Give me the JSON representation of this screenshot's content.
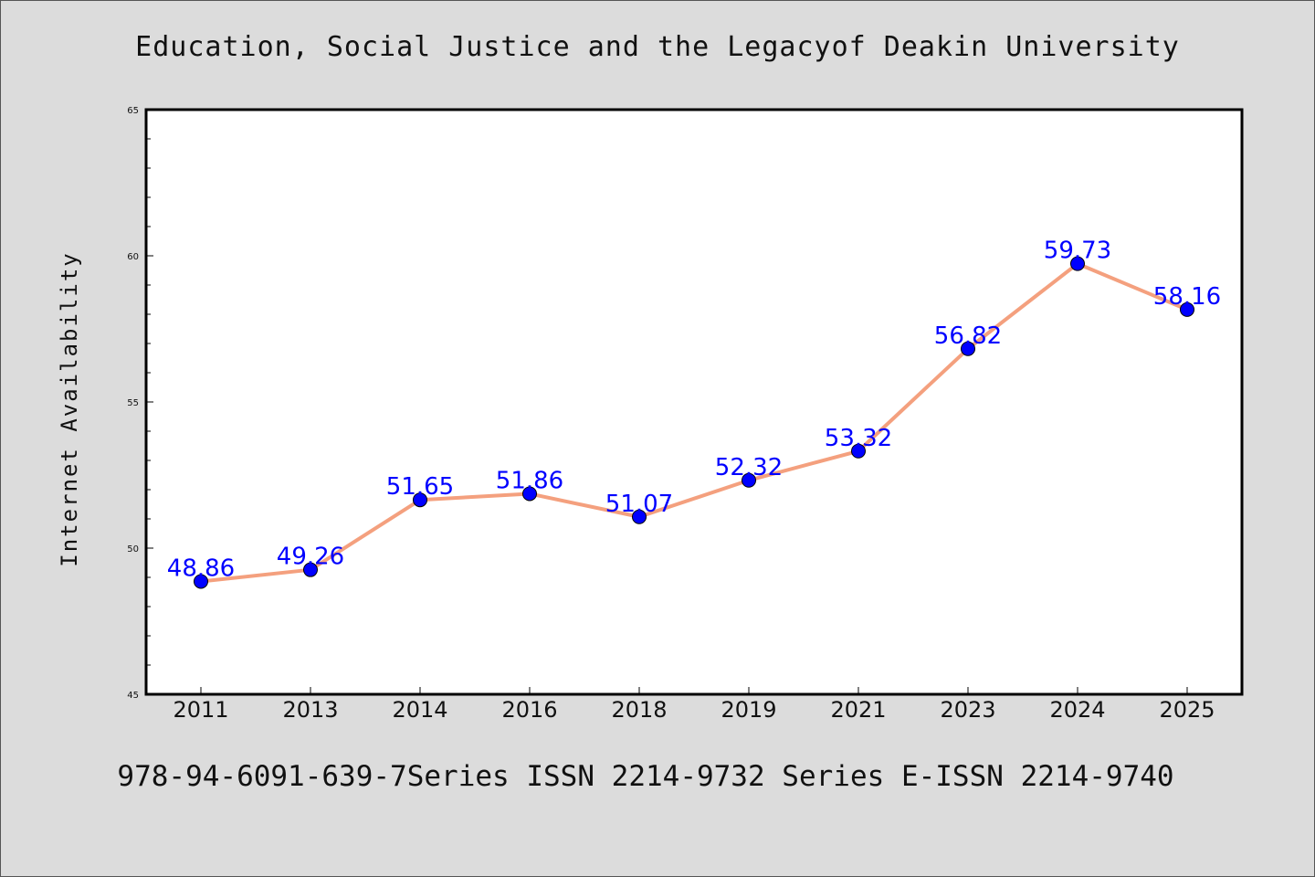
{
  "chart_data": {
    "type": "line",
    "title": "Education, Social Justice and the Legacyof Deakin University",
    "ylabel": "Internet Availability",
    "xlabel": "",
    "categories": [
      "2011",
      "2013",
      "2014",
      "2016",
      "2018",
      "2019",
      "2021",
      "2023",
      "2024",
      "2025"
    ],
    "series": [
      {
        "values": [
          48.86,
          49.26,
          51.65,
          51.86,
          51.07,
          52.32,
          53.32,
          56.82,
          59.73,
          58.16
        ],
        "data_labels": [
          "48.86",
          "49.26",
          "51.65",
          "51.86",
          "51.07",
          "52.32",
          "53.32",
          "56.82",
          "59.73",
          "58.16"
        ]
      }
    ],
    "ylim": [
      45,
      65
    ],
    "yticks": [
      45,
      50,
      55,
      60,
      65
    ],
    "grid": false,
    "colors": {
      "line": "#f4a07e",
      "marker": "#0000ff",
      "label": "#0000ff"
    }
  },
  "footer": {
    "text": "978-94-6091-639-7Series ISSN 2214-9732 Series E-ISSN 2214-9740"
  }
}
